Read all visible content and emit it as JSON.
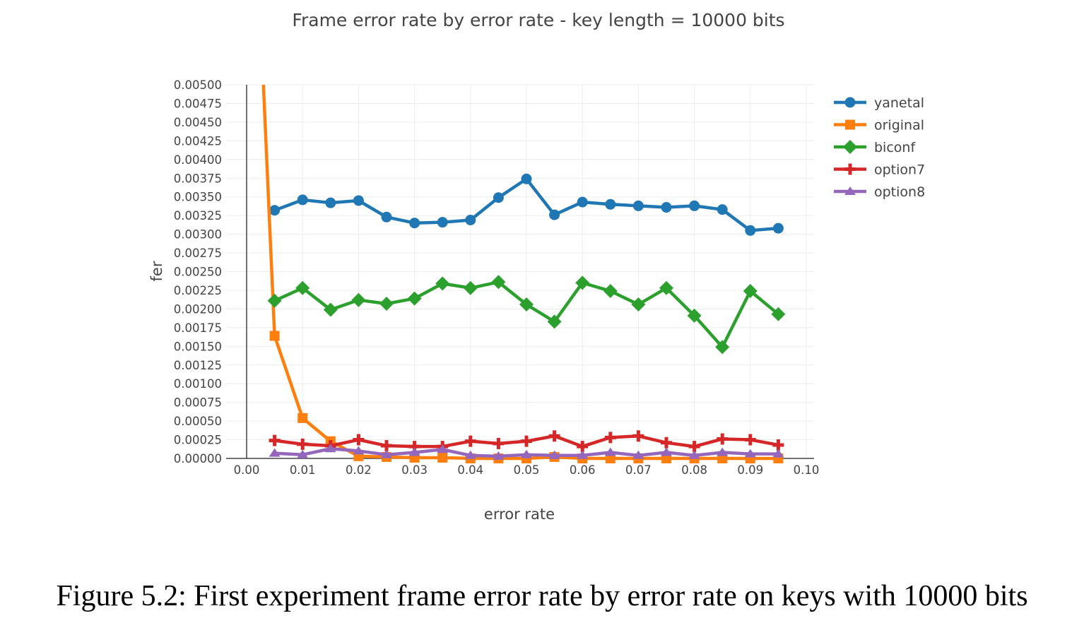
{
  "chart_data": {
    "type": "line",
    "title": "Frame error rate by error rate - key length = 10000 bits",
    "xlabel": "error rate",
    "ylabel": "fer",
    "xlim": [
      0,
      0.1
    ],
    "ylim": [
      0,
      0.005
    ],
    "x_ticks": [
      "0.00",
      "0.01",
      "0.02",
      "0.03",
      "0.04",
      "0.05",
      "0.06",
      "0.07",
      "0.08",
      "0.09",
      "0.10"
    ],
    "y_ticks": [
      "0.00000",
      "0.00025",
      "0.00050",
      "0.00075",
      "0.00100",
      "0.00125",
      "0.00150",
      "0.00175",
      "0.00200",
      "0.00225",
      "0.00250",
      "0.00275",
      "0.00300",
      "0.00325",
      "0.00350",
      "0.00375",
      "0.00400",
      "0.00425",
      "0.00450",
      "0.00475",
      "0.00500"
    ],
    "legend_position": "top-right",
    "series": [
      {
        "name": "yanetal",
        "color": "#1f77b4",
        "marker": "circle",
        "x": [
          0.005,
          0.01,
          0.015,
          0.02,
          0.025,
          0.03,
          0.035,
          0.04,
          0.045,
          0.05,
          0.055,
          0.06,
          0.065,
          0.07,
          0.075,
          0.08,
          0.085,
          0.09,
          0.095
        ],
        "y": [
          0.00332,
          0.00346,
          0.00342,
          0.00345,
          0.00323,
          0.00315,
          0.00316,
          0.00319,
          0.00349,
          0.00374,
          0.00326,
          0.00343,
          0.0034,
          0.00338,
          0.00336,
          0.00338,
          0.00333,
          0.00305,
          0.00308
        ]
      },
      {
        "name": "original",
        "color": "#ff7f0e",
        "marker": "square",
        "x": [
          0.003,
          0.005,
          0.01,
          0.015,
          0.02,
          0.025,
          0.03,
          0.035,
          0.04,
          0.045,
          0.05,
          0.055,
          0.06,
          0.065,
          0.07,
          0.075,
          0.08,
          0.085,
          0.09,
          0.095
        ],
        "y": [
          0.005,
          0.00164,
          0.00054,
          0.00023,
          3e-05,
          2e-05,
          1e-05,
          1e-05,
          0.0,
          0.0,
          0.0,
          2e-05,
          0.0,
          0.0,
          0.0,
          0.0,
          0.0,
          0.0,
          0.0,
          0.0
        ]
      },
      {
        "name": "biconf",
        "color": "#2ca02c",
        "marker": "diamond",
        "x": [
          0.005,
          0.01,
          0.015,
          0.02,
          0.025,
          0.03,
          0.035,
          0.04,
          0.045,
          0.05,
          0.055,
          0.06,
          0.065,
          0.07,
          0.075,
          0.08,
          0.085,
          0.09,
          0.095
        ],
        "y": [
          0.00211,
          0.00228,
          0.00199,
          0.00212,
          0.00207,
          0.00214,
          0.00234,
          0.00228,
          0.00236,
          0.00206,
          0.00183,
          0.00235,
          0.00224,
          0.00206,
          0.00228,
          0.00191,
          0.00149,
          0.00224,
          0.00193
        ]
      },
      {
        "name": "option7",
        "color": "#d62728",
        "marker": "cross",
        "x": [
          0.005,
          0.01,
          0.015,
          0.02,
          0.025,
          0.03,
          0.035,
          0.04,
          0.045,
          0.05,
          0.055,
          0.06,
          0.065,
          0.07,
          0.075,
          0.08,
          0.085,
          0.09,
          0.095
        ],
        "y": [
          0.00024,
          0.00019,
          0.00017,
          0.00025,
          0.00017,
          0.00016,
          0.00016,
          0.00023,
          0.0002,
          0.00023,
          0.0003,
          0.00016,
          0.00028,
          0.0003,
          0.00021,
          0.00016,
          0.00026,
          0.00025,
          0.00018
        ]
      },
      {
        "name": "option8",
        "color": "#9467bd",
        "marker": "triangle",
        "x": [
          0.005,
          0.01,
          0.015,
          0.02,
          0.025,
          0.03,
          0.035,
          0.04,
          0.045,
          0.05,
          0.055,
          0.06,
          0.065,
          0.07,
          0.075,
          0.08,
          0.085,
          0.09,
          0.095
        ],
        "y": [
          7e-05,
          5e-05,
          0.00013,
          0.0001,
          5e-05,
          8e-05,
          0.00012,
          4e-05,
          3e-05,
          5e-05,
          4e-05,
          4e-05,
          8e-05,
          4e-05,
          8e-05,
          4e-05,
          8e-05,
          6e-05,
          6e-05
        ]
      }
    ]
  },
  "caption": "Figure 5.2: First experiment frame error rate by error rate on keys with 10000 bits"
}
